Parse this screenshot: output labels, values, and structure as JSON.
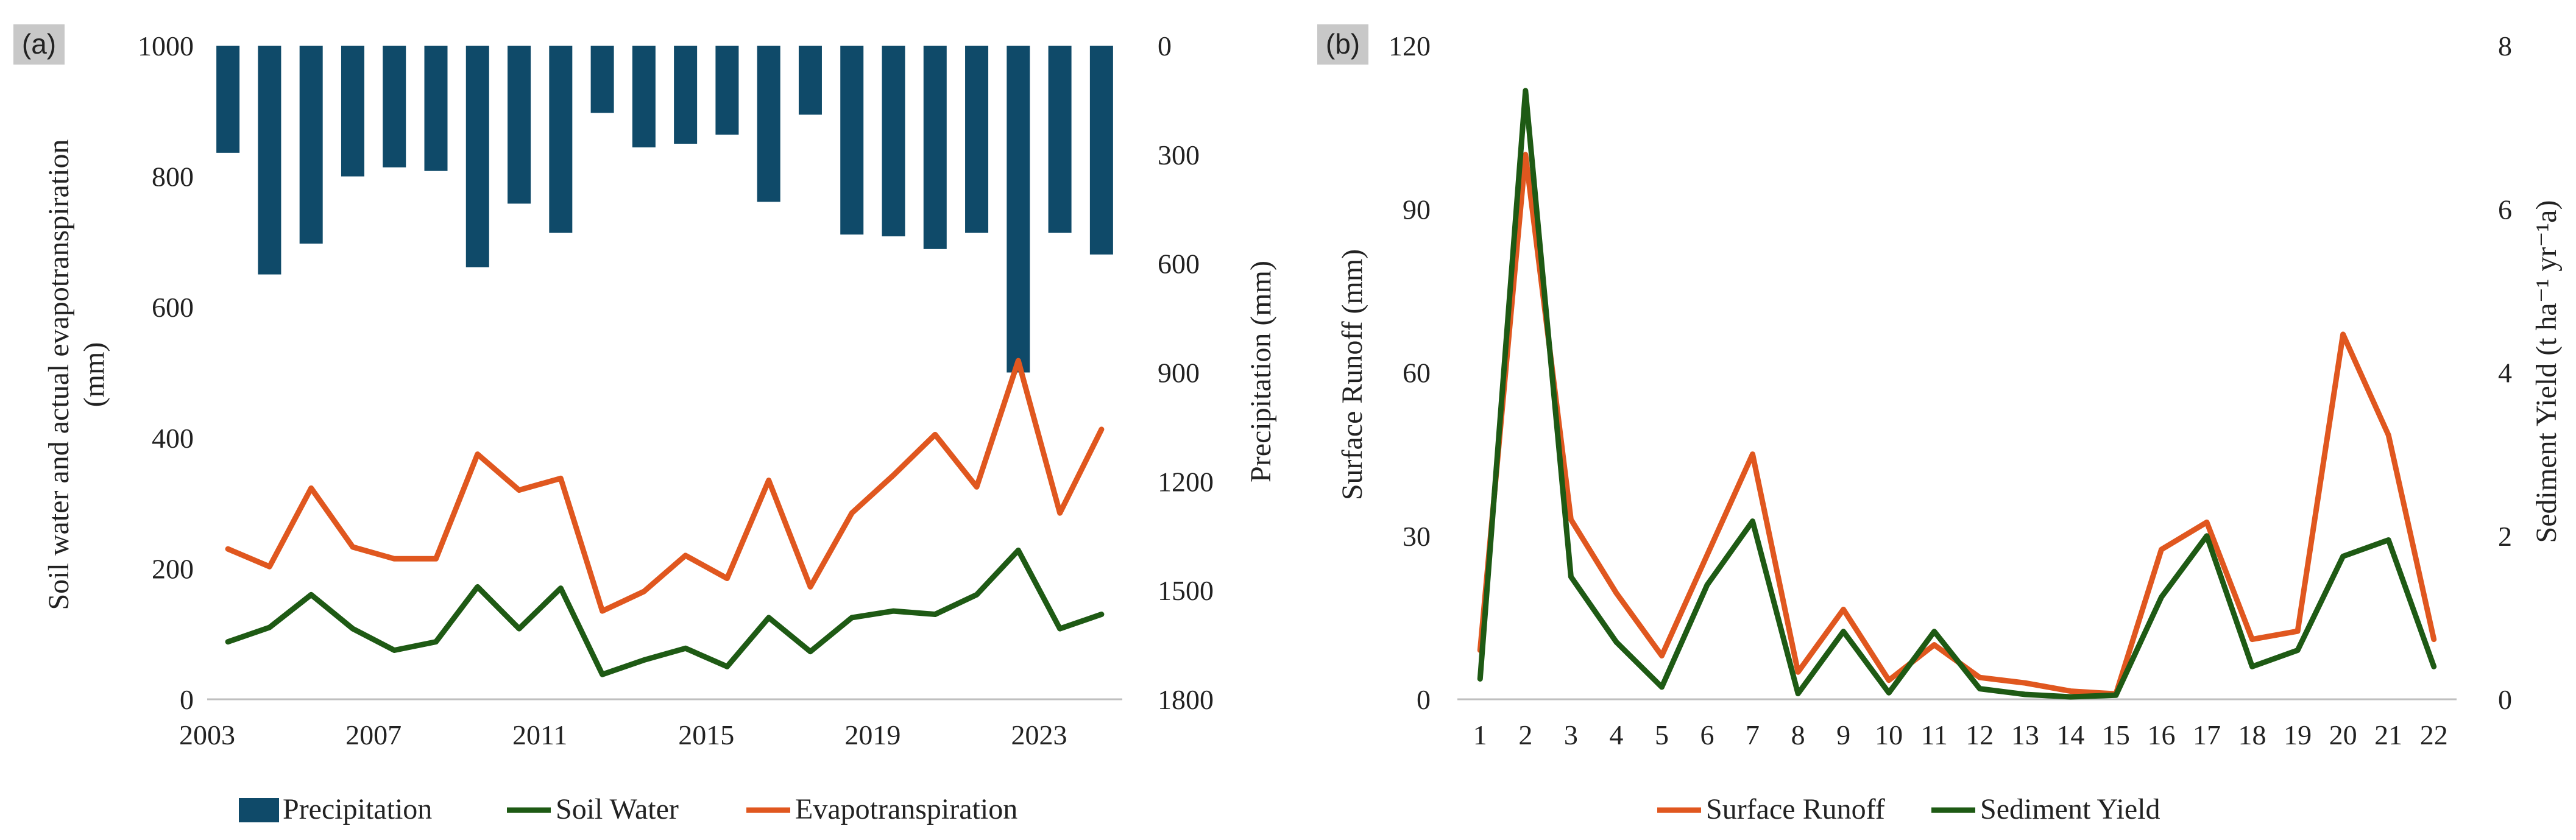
{
  "colors": {
    "precipitation": "#0F4A69",
    "soil_water": "#1E5A14",
    "evapotranspiration": "#E0571F",
    "surface_runoff": "#E0571F",
    "sediment_yield": "#1E5A14",
    "panel_label_bg": "#C8C8C8"
  },
  "chart_data": [
    {
      "panel": "(a)",
      "type": "bar+line",
      "x": [
        2003,
        2004,
        2005,
        2006,
        2007,
        2008,
        2009,
        2010,
        2011,
        2012,
        2013,
        2014,
        2015,
        2016,
        2017,
        2018,
        2019,
        2020,
        2021,
        2022,
        2023,
        2024
      ],
      "x_tick_labels": [
        "2003",
        "2007",
        "2011",
        "2015",
        "2019",
        "2023"
      ],
      "left_axis": {
        "label_line1": "Soil water and actual evapotranspiration",
        "label_line2": "(mm)",
        "ylim": [
          0,
          1000
        ],
        "ticks": [
          "0",
          "200",
          "400",
          "600",
          "800",
          "1000"
        ]
      },
      "right_axis": {
        "label": "Precipitation (mm)",
        "ylim": [
          0,
          1800
        ],
        "inverted": true,
        "ticks": [
          "0",
          "300",
          "600",
          "900",
          "1200",
          "1500",
          "1800"
        ]
      },
      "series": [
        {
          "name": "Precipitation",
          "type": "bar",
          "axis": "right",
          "values": [
            295,
            630,
            545,
            360,
            335,
            345,
            610,
            435,
            515,
            185,
            280,
            270,
            245,
            430,
            190,
            520,
            525,
            560,
            515,
            900,
            515,
            575
          ]
        },
        {
          "name": "Soil Water",
          "type": "line",
          "axis": "left",
          "values": [
            88,
            110,
            160,
            108,
            75,
            88,
            172,
            108,
            170,
            38,
            60,
            78,
            50,
            125,
            73,
            125,
            135,
            130,
            160,
            228,
            108,
            130
          ]
        },
        {
          "name": "Evapotranspiration",
          "type": "line",
          "axis": "left",
          "values": [
            230,
            203,
            323,
            233,
            215,
            215,
            375,
            320,
            338,
            135,
            165,
            220,
            185,
            335,
            172,
            285,
            343,
            405,
            325,
            518,
            285,
            413
          ]
        }
      ],
      "legend": [
        "Precipitation",
        "Soil Water",
        "Evapotranspiration"
      ]
    },
    {
      "panel": "(b)",
      "type": "line",
      "x": [
        1,
        2,
        3,
        4,
        5,
        6,
        7,
        8,
        9,
        10,
        11,
        12,
        13,
        14,
        15,
        16,
        17,
        18,
        19,
        20,
        21,
        22
      ],
      "x_tick_labels": [
        "1",
        "2",
        "3",
        "4",
        "5",
        "6",
        "7",
        "8",
        "9",
        "10",
        "11",
        "12",
        "13",
        "14",
        "15",
        "16",
        "17",
        "18",
        "19",
        "20",
        "21",
        "22"
      ],
      "left_axis": {
        "label": "Surface Runoff (mm)",
        "ylim": [
          0,
          120
        ],
        "ticks": [
          "0",
          "30",
          "60",
          "90",
          "120"
        ]
      },
      "right_axis": {
        "label": "Sediment Yield (t ha⁻¹ yr⁻¹a)",
        "ylim": [
          0,
          8
        ],
        "ticks": [
          "0",
          "2",
          "4",
          "6",
          "8"
        ]
      },
      "series": [
        {
          "name": "Surface Runoff",
          "axis": "left",
          "values": [
            9,
            100,
            33,
            19.5,
            8,
            26.5,
            45,
            5,
            16.5,
            3.5,
            10,
            4,
            3,
            1.5,
            1,
            27.5,
            32.5,
            11,
            12.5,
            67,
            48.5,
            11
          ]
        },
        {
          "name": "Sediment Yield",
          "axis": "right",
          "values": [
            0.25,
            7.45,
            1.5,
            0.7,
            0.15,
            1.4,
            2.18,
            0.07,
            0.83,
            0.08,
            0.83,
            0.13,
            0.06,
            0.03,
            0.05,
            1.25,
            2,
            0.4,
            0.6,
            1.75,
            1.95,
            0.4
          ]
        }
      ],
      "legend": [
        "Surface Runoff",
        "Sediment Yield"
      ]
    }
  ]
}
